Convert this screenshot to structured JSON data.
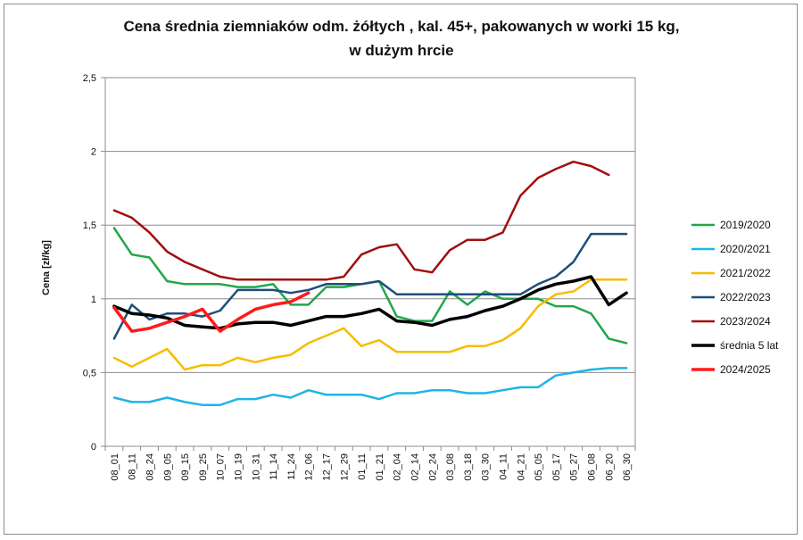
{
  "chart_data": {
    "type": "line",
    "title_line1": "Cena średnia ziemniaków odm. żółtych , kal. 45+, pakowanych w worki 15 kg,",
    "title_line2": "w dużym hrcie",
    "ylabel": "Cena [zł/kg]",
    "xlabel": "",
    "ylim": [
      0,
      2.5
    ],
    "yticks": [
      "0",
      "0,5",
      "1",
      "1,5",
      "2",
      "2,5"
    ],
    "grid": "horizontal",
    "legend_position": "right",
    "x_ticks": [
      "08_01",
      "08_11",
      "08_24",
      "09_05",
      "09_15",
      "09_25",
      "10_07",
      "10_19",
      "10_31",
      "11_14",
      "11_24",
      "12_06",
      "12_17",
      "12_29",
      "01_11",
      "01_21",
      "02_04",
      "02_14",
      "02_24",
      "03_08",
      "03_18",
      "03_30",
      "04_11",
      "04_21",
      "05_05",
      "05_17",
      "05_27",
      "06_08",
      "06_20",
      "06_30"
    ],
    "series": [
      {
        "name": "2019/2020",
        "color": "#22a64a",
        "width": 2.5,
        "values": [
          1.48,
          1.3,
          1.28,
          1.12,
          1.1,
          1.1,
          1.1,
          1.08,
          1.08,
          1.1,
          0.96,
          0.96,
          1.08,
          1.08,
          1.1,
          1.12,
          0.88,
          0.85,
          0.85,
          1.05,
          0.96,
          1.05,
          1.0,
          1.0,
          1.0,
          0.95,
          0.95,
          0.9,
          0.73,
          0.7
        ]
      },
      {
        "name": "2020/2021",
        "color": "#1fb4e6",
        "width": 2.5,
        "values": [
          0.33,
          0.3,
          0.3,
          0.33,
          0.3,
          0.28,
          0.28,
          0.32,
          0.32,
          0.35,
          0.33,
          0.38,
          0.35,
          0.35,
          0.35,
          0.32,
          0.36,
          0.36,
          0.38,
          0.38,
          0.36,
          0.36,
          0.38,
          0.4,
          0.4,
          0.48,
          0.5,
          0.52,
          0.53,
          0.53
        ]
      },
      {
        "name": "2021/2022",
        "color": "#f5bd00",
        "width": 2.5,
        "values": [
          0.6,
          0.54,
          0.6,
          0.66,
          0.52,
          0.55,
          0.55,
          0.6,
          0.57,
          0.6,
          0.62,
          0.7,
          0.75,
          0.8,
          0.68,
          0.72,
          0.64,
          0.64,
          0.64,
          0.64,
          0.68,
          0.68,
          0.72,
          0.8,
          0.95,
          1.03,
          1.05,
          1.13,
          1.13,
          1.13
        ]
      },
      {
        "name": "2022/2023",
        "color": "#1f4e79",
        "width": 2.5,
        "values": [
          0.73,
          0.96,
          0.86,
          0.9,
          0.9,
          0.88,
          0.92,
          1.06,
          1.06,
          1.06,
          1.04,
          1.06,
          1.1,
          1.1,
          1.1,
          1.12,
          1.03,
          1.03,
          1.03,
          1.03,
          1.03,
          1.03,
          1.03,
          1.03,
          1.1,
          1.15,
          1.25,
          1.44,
          1.44,
          1.44
        ]
      },
      {
        "name": "2023/2024",
        "color": "#a00f0f",
        "width": 2.5,
        "values": [
          1.6,
          1.55,
          1.45,
          1.32,
          1.25,
          1.2,
          1.15,
          1.13,
          1.13,
          1.13,
          1.13,
          1.13,
          1.13,
          1.15,
          1.3,
          1.35,
          1.37,
          1.2,
          1.18,
          1.33,
          1.4,
          1.4,
          1.45,
          1.7,
          1.82,
          1.88,
          1.93,
          1.9,
          1.84,
          null
        ]
      },
      {
        "name": "średnia 5 lat",
        "color": "#000000",
        "width": 3.5,
        "values": [
          0.95,
          0.9,
          0.89,
          0.87,
          0.82,
          0.81,
          0.8,
          0.83,
          0.84,
          0.84,
          0.82,
          0.85,
          0.88,
          0.88,
          0.9,
          0.93,
          0.85,
          0.84,
          0.82,
          0.86,
          0.88,
          0.92,
          0.95,
          1.0,
          1.06,
          1.1,
          1.12,
          1.15,
          0.96,
          1.04
        ]
      },
      {
        "name": "2024/2025",
        "color": "#ff1a1a",
        "width": 3.5,
        "values": [
          0.94,
          0.78,
          0.8,
          0.84,
          0.88,
          0.93,
          0.78,
          0.86,
          0.93,
          0.96,
          0.98,
          1.04,
          null,
          null,
          null,
          null,
          null,
          null,
          null,
          null,
          null,
          null,
          null,
          null,
          null,
          null,
          null,
          null,
          null,
          null
        ]
      }
    ]
  }
}
